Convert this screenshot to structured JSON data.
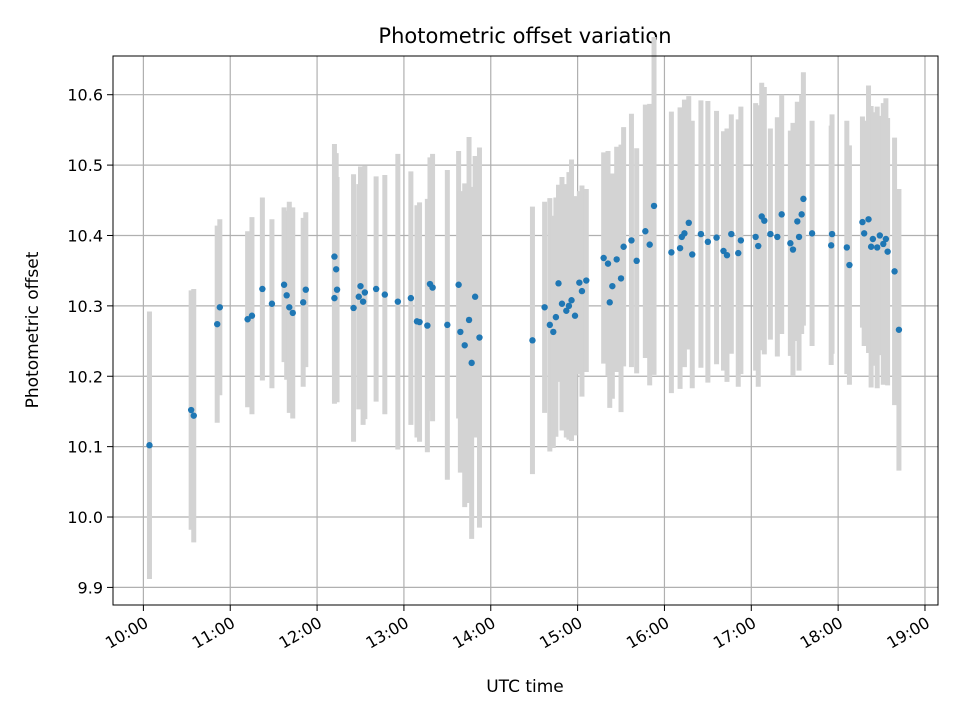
{
  "chart_data": {
    "type": "scatter",
    "title": "Photometric offset variation",
    "xlabel": "UTC time",
    "ylabel": "Photometric offset",
    "x_unit": "hours UTC",
    "xlim": [
      9.65,
      19.15
    ],
    "ylim": [
      9.875,
      10.655
    ],
    "x_ticks": [
      10,
      11,
      12,
      13,
      14,
      15,
      16,
      17,
      18,
      19
    ],
    "x_tick_labels": [
      "10:00",
      "11:00",
      "12:00",
      "13:00",
      "14:00",
      "15:00",
      "16:00",
      "17:00",
      "18:00",
      "19:00"
    ],
    "y_ticks": [
      9.9,
      10.0,
      10.1,
      10.2,
      10.3,
      10.4,
      10.5,
      10.6
    ],
    "y_tick_labels": [
      "9.9",
      "10.0",
      "10.1",
      "10.2",
      "10.3",
      "10.4",
      "10.5",
      "10.6"
    ],
    "grid": true,
    "point_color": "#1f77b4",
    "errorbar_color": "#d3d3d3",
    "series": [
      {
        "x": [
          10.07,
          10.55,
          10.58,
          10.85,
          10.88,
          11.2,
          11.25,
          11.37,
          11.48,
          11.62,
          11.65,
          11.68,
          11.72,
          11.84,
          11.87,
          12.2,
          12.22,
          12.23,
          12.2,
          12.42,
          12.48,
          12.5,
          12.53,
          12.55,
          12.68,
          12.78,
          12.93,
          13.08,
          13.15,
          13.18,
          13.27,
          13.3,
          13.33,
          13.5,
          13.63,
          13.65,
          13.7,
          13.75,
          13.78,
          13.82,
          13.87,
          14.48,
          14.62,
          14.68,
          14.72,
          14.75,
          14.78,
          14.82,
          14.87,
          14.9,
          14.93,
          14.97,
          15.02,
          15.05,
          15.1,
          15.3,
          15.35,
          15.37,
          15.4,
          15.45,
          15.5,
          15.53,
          15.62,
          15.68,
          15.78,
          15.83,
          15.88,
          16.08,
          16.18,
          16.2,
          16.23,
          16.28,
          16.32,
          16.42,
          16.5,
          16.6,
          16.68,
          16.72,
          16.77,
          16.85,
          16.88,
          17.05,
          17.08,
          17.12,
          17.15,
          17.22,
          17.3,
          17.35,
          17.45,
          17.48,
          17.53,
          17.55,
          17.58,
          17.6,
          17.7,
          17.92,
          17.93,
          18.1,
          18.13,
          18.28,
          18.3,
          18.35,
          18.38,
          18.4,
          18.45,
          18.48,
          18.52,
          18.55,
          18.57,
          18.65,
          18.7
        ],
        "y": [
          10.102,
          10.152,
          10.144,
          10.274,
          10.298,
          10.281,
          10.286,
          10.324,
          10.303,
          10.33,
          10.315,
          10.298,
          10.29,
          10.305,
          10.323,
          10.37,
          10.352,
          10.323,
          10.311,
          10.297,
          10.313,
          10.328,
          10.306,
          10.319,
          10.324,
          10.316,
          10.306,
          10.311,
          10.278,
          10.277,
          10.272,
          10.331,
          10.326,
          10.273,
          10.33,
          10.263,
          10.244,
          10.28,
          10.219,
          10.313,
          10.255,
          10.251,
          10.298,
          10.273,
          10.263,
          10.284,
          10.332,
          10.303,
          10.293,
          10.3,
          10.308,
          10.286,
          10.333,
          10.321,
          10.336,
          10.368,
          10.36,
          10.305,
          10.328,
          10.366,
          10.339,
          10.384,
          10.393,
          10.364,
          10.406,
          10.387,
          10.442,
          10.376,
          10.382,
          10.398,
          10.403,
          10.418,
          10.373,
          10.402,
          10.391,
          10.397,
          10.378,
          10.372,
          10.402,
          10.375,
          10.393,
          10.398,
          10.385,
          10.427,
          10.421,
          10.402,
          10.398,
          10.43,
          10.389,
          10.38,
          10.42,
          10.398,
          10.43,
          10.452,
          10.403,
          10.386,
          10.402,
          10.383,
          10.358,
          10.419,
          10.403,
          10.423,
          10.384,
          10.395,
          10.383,
          10.4,
          10.388,
          10.395,
          10.377,
          10.349,
          10.266
        ],
        "err": [
          0.19,
          0.17,
          0.18,
          0.14,
          0.125,
          0.125,
          0.14,
          0.13,
          0.12,
          0.11,
          0.12,
          0.15,
          0.15,
          0.12,
          0.11,
          0.16,
          0.165,
          0.16,
          0.15,
          0.19,
          0.16,
          0.17,
          0.175,
          0.18,
          0.16,
          0.17,
          0.21,
          0.18,
          0.165,
          0.17,
          0.18,
          0.18,
          0.19,
          0.22,
          0.19,
          0.2,
          0.23,
          0.26,
          0.25,
          0.2,
          0.27,
          0.19,
          0.15,
          0.18,
          0.165,
          0.17,
          0.14,
          0.18,
          0.18,
          0.19,
          0.2,
          0.17,
          0.13,
          0.15,
          0.13,
          0.15,
          0.16,
          0.15,
          0.16,
          0.16,
          0.19,
          0.17,
          0.18,
          0.16,
          0.18,
          0.2,
          0.24,
          0.2,
          0.2,
          0.18,
          0.19,
          0.18,
          0.19,
          0.19,
          0.2,
          0.18,
          0.17,
          0.18,
          0.17,
          0.19,
          0.19,
          0.19,
          0.2,
          0.19,
          0.19,
          0.15,
          0.17,
          0.17,
          0.16,
          0.18,
          0.17,
          0.19,
          0.17,
          0.18,
          0.16,
          0.17,
          0.17,
          0.18,
          0.17,
          0.15,
          0.16,
          0.19,
          0.2,
          0.18,
          0.2,
          0.17,
          0.2,
          0.2,
          0.19,
          0.19,
          0.2
        ]
      }
    ]
  }
}
